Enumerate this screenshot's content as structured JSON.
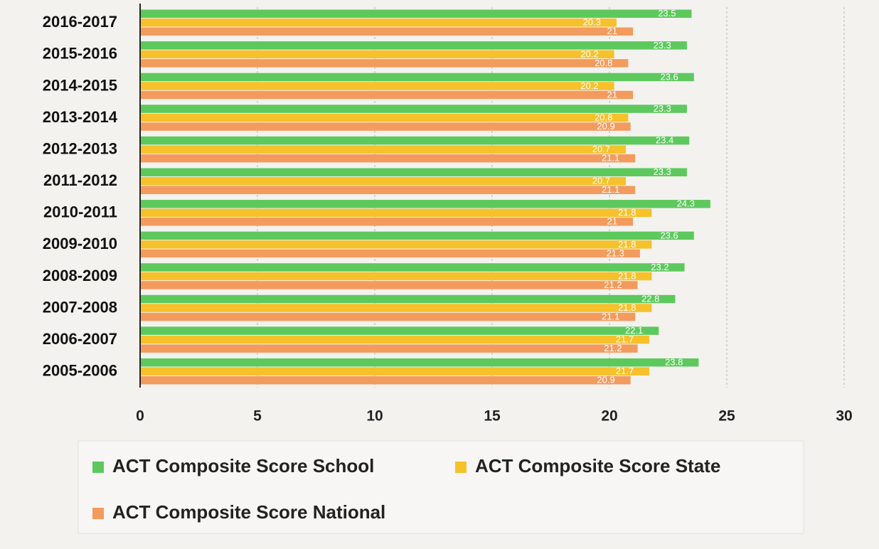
{
  "chart_data": {
    "type": "hbar",
    "categories": [
      "2016-2017",
      "2015-2016",
      "2014-2015",
      "2013-2014",
      "2012-2013",
      "2011-2012",
      "2010-2011",
      "2009-2010",
      "2008-2009",
      "2007-2008",
      "2006-2007",
      "2005-2006"
    ],
    "series": [
      {
        "name": "ACT Composite Score School",
        "color": "#5dc95d",
        "values": [
          23.5,
          23.3,
          23.6,
          23.3,
          23.4,
          23.3,
          24.3,
          23.6,
          23.2,
          22.8,
          22.1,
          23.8
        ]
      },
      {
        "name": "ACT Composite Score State",
        "color": "#f6c12b",
        "values": [
          20.3,
          20.2,
          20.2,
          20.8,
          20.7,
          20.7,
          21.8,
          21.8,
          21.8,
          21.8,
          21.7,
          21.7
        ]
      },
      {
        "name": "ACT Composite Score National",
        "color": "#f39b5d",
        "values": [
          21,
          20.8,
          21,
          20.9,
          21.1,
          21.1,
          21,
          21.3,
          21.2,
          21.1,
          21.2,
          20.9
        ]
      }
    ],
    "xlim": [
      0,
      30
    ],
    "xticks": [
      0,
      5,
      10,
      15,
      20,
      25,
      30
    ],
    "grid": true,
    "legend": "bottom"
  }
}
